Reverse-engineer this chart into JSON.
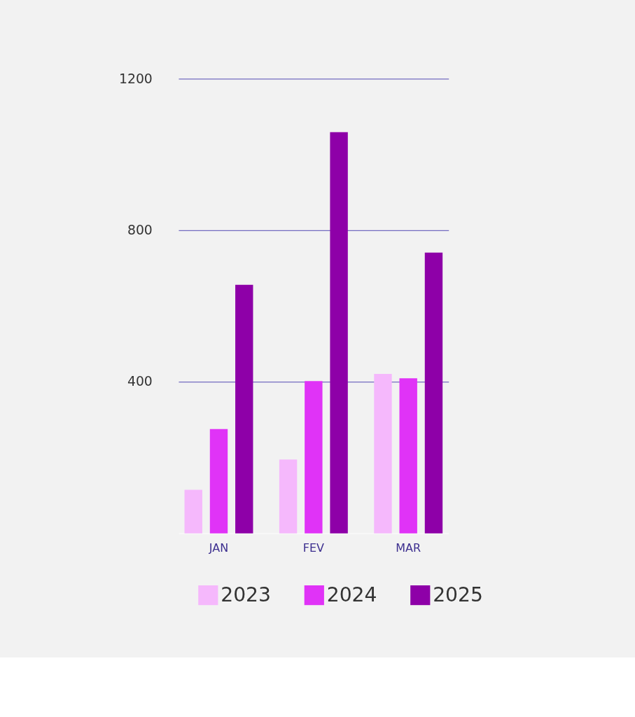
{
  "chart_data": {
    "type": "bar",
    "categories": [
      "JAN",
      "FEV",
      "MAR"
    ],
    "series": [
      {
        "name": "2023",
        "color": "#f5b8fc",
        "values": [
          115,
          195,
          421
        ]
      },
      {
        "name": "2024",
        "color": "#e033f7",
        "values": [
          275,
          402,
          409
        ]
      },
      {
        "name": "2025",
        "color": "#8e00a8",
        "values": [
          656,
          1059,
          741
        ]
      }
    ],
    "ylim": [
      0,
      1200
    ],
    "yticks": [
      400,
      800,
      1200
    ],
    "grid": "y",
    "legend": "bottom"
  }
}
